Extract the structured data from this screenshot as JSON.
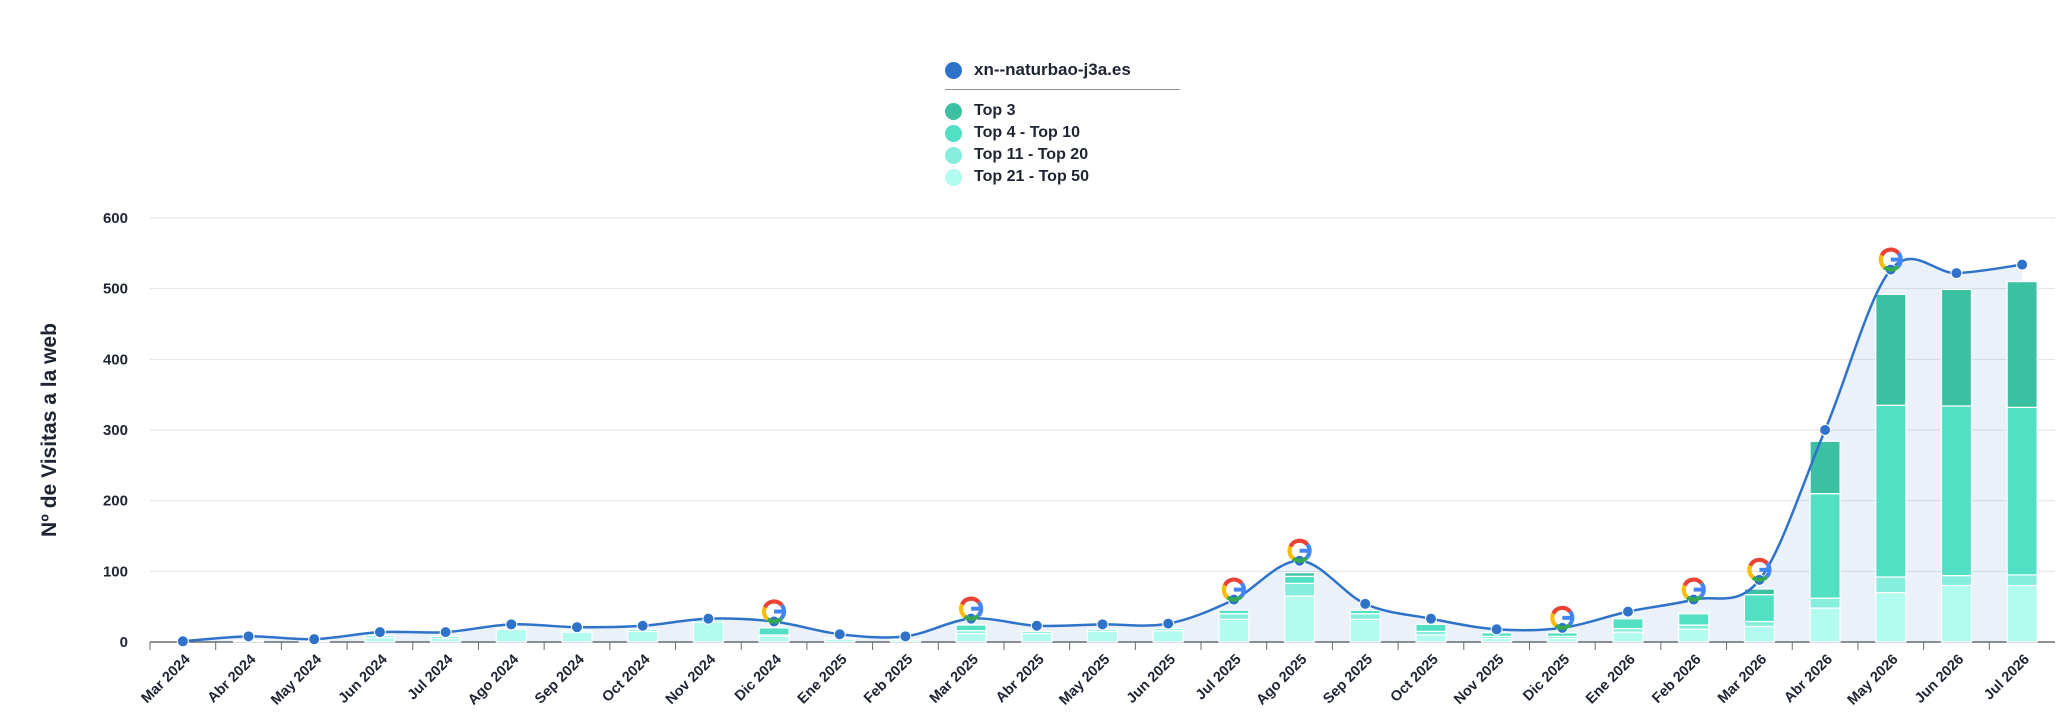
{
  "chart_data": {
    "type": "bar",
    "title": "",
    "xlabel": "",
    "ylabel": "Nº de Visitas a la web",
    "ylim": [
      0,
      600
    ],
    "yticks": [
      0,
      100,
      200,
      300,
      400,
      500,
      600
    ],
    "grid": true,
    "legend_position": "top-center",
    "categories": [
      "Mar 2024",
      "Abr 2024",
      "May 2024",
      "Jun 2024",
      "Jul 2024",
      "Ago 2024",
      "Sep 2024",
      "Oct 2024",
      "Nov 2024",
      "Dic 2024",
      "Ene 2025",
      "Feb 2025",
      "Mar 2025",
      "Abr 2025",
      "May 2025",
      "Jun 2025",
      "Jul 2025",
      "Ago 2025",
      "Sep 2025",
      "Oct 2025",
      "Nov 2025",
      "Dic 2025",
      "Ene 2026",
      "Feb 2026",
      "Mar 2026",
      "Abr 2026",
      "May 2026",
      "Jun 2026",
      "Jul 2026"
    ],
    "line_series": {
      "name": "xn--naturbao-j3a.es",
      "color": "#2f72c9",
      "values": [
        1,
        8,
        4,
        14,
        14,
        25,
        21,
        23,
        33,
        29,
        11,
        8,
        33,
        23,
        25,
        26,
        60,
        115,
        54,
        33,
        18,
        20,
        43,
        60,
        88,
        300,
        527,
        522,
        534
      ]
    },
    "bar_series": [
      {
        "name": "Top 21 - Top 50",
        "color": "#b3fbef",
        "values": [
          0,
          2,
          1,
          6,
          5,
          18,
          14,
          15,
          28,
          8,
          4,
          3,
          12,
          12,
          15,
          16,
          32,
          65,
          32,
          10,
          5,
          5,
          14,
          18,
          22,
          48,
          70,
          80,
          80
        ]
      },
      {
        "name": "Top 11 - Top 20",
        "color": "#86eedc",
        "values": [
          0,
          0,
          0,
          3,
          3,
          2,
          2,
          3,
          3,
          2,
          2,
          1,
          4,
          3,
          3,
          3,
          8,
          18,
          8,
          5,
          3,
          3,
          5,
          6,
          7,
          14,
          22,
          14,
          15
        ]
      },
      {
        "name": "Top 4 - Top 10",
        "color": "#52e0c5",
        "values": [
          0,
          0,
          0,
          0,
          0,
          0,
          0,
          0,
          0,
          10,
          0,
          0,
          8,
          0,
          0,
          0,
          5,
          10,
          5,
          10,
          5,
          5,
          14,
          16,
          38,
          148,
          243,
          240,
          237
        ]
      },
      {
        "name": "Top 3",
        "color": "#3cc0a2",
        "values": [
          0,
          0,
          0,
          0,
          0,
          0,
          0,
          0,
          0,
          0,
          0,
          0,
          0,
          0,
          0,
          0,
          0,
          5,
          2,
          0,
          0,
          0,
          2,
          2,
          8,
          74,
          157,
          165,
          178
        ]
      }
    ],
    "google_update_markers": [
      "Dic 2024",
      "Mar 2025",
      "Jul 2025",
      "Ago 2025",
      "Dic 2025",
      "Feb 2026",
      "Mar 2026",
      "May 2026"
    ]
  },
  "legend": {
    "items": [
      {
        "label": "xn--naturbao-j3a.es",
        "color": "#2f72c9"
      },
      {
        "label": "Top 3",
        "color": "#3cc0a2"
      },
      {
        "label": "Top 4 - Top 10",
        "color": "#52e0c5"
      },
      {
        "label": "Top 11 - Top 20",
        "color": "#86eedc"
      },
      {
        "label": "Top 21 - Top 50",
        "color": "#b3fbef"
      }
    ]
  },
  "icons": {
    "google_marker": "google-g-icon"
  }
}
